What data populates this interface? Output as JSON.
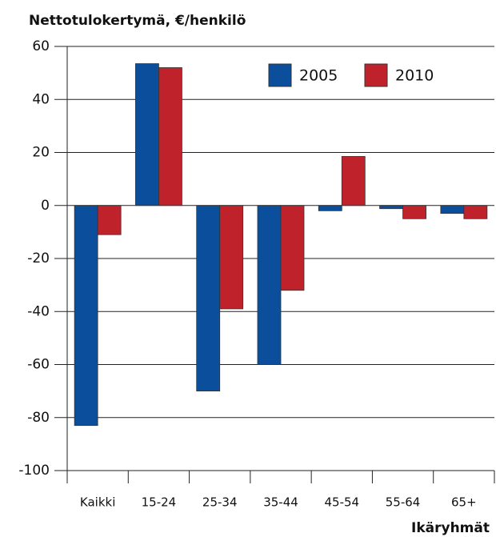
{
  "chart_data": {
    "type": "bar",
    "title": "Nettotulokertymä, €/henkilö",
    "x_label": "Ikäryhmät",
    "categories": [
      "Kaikki",
      "15-24",
      "25-34",
      "35-44",
      "45-54",
      "55-64",
      "65+"
    ],
    "series": [
      {
        "name": "2005",
        "color": "#0b4f9c",
        "values": [
          -83,
          53.5,
          -70,
          -60,
          -2,
          -1.2,
          -3
        ]
      },
      {
        "name": "2010",
        "color": "#c0222c",
        "values": [
          -11,
          52,
          -39,
          -32,
          18.5,
          -5,
          -5
        ]
      }
    ],
    "ylim": [
      -100,
      60
    ],
    "yticks": [
      -100,
      -80,
      -60,
      -40,
      -20,
      0,
      20,
      40,
      60
    ],
    "grid": true,
    "legend": "top-right"
  }
}
